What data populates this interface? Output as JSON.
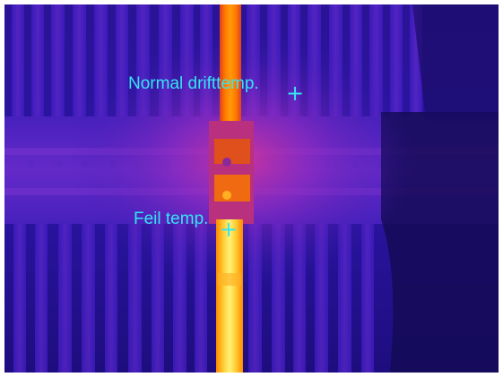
{
  "image": {
    "kind": "thermal-camera",
    "palette": [
      "#1a0b6e",
      "#3a1bb5",
      "#7a2cc4",
      "#c22e9a",
      "#f04d28",
      "#ff8a00",
      "#ffc21a",
      "#fff27a"
    ]
  },
  "annotations": [
    {
      "id": "normal",
      "label": "Normal drifttemp.",
      "marker": "+",
      "color": "#33e6f2"
    },
    {
      "id": "fault",
      "label": "Feil temp.",
      "marker": "+",
      "color": "#33e6f2"
    }
  ]
}
